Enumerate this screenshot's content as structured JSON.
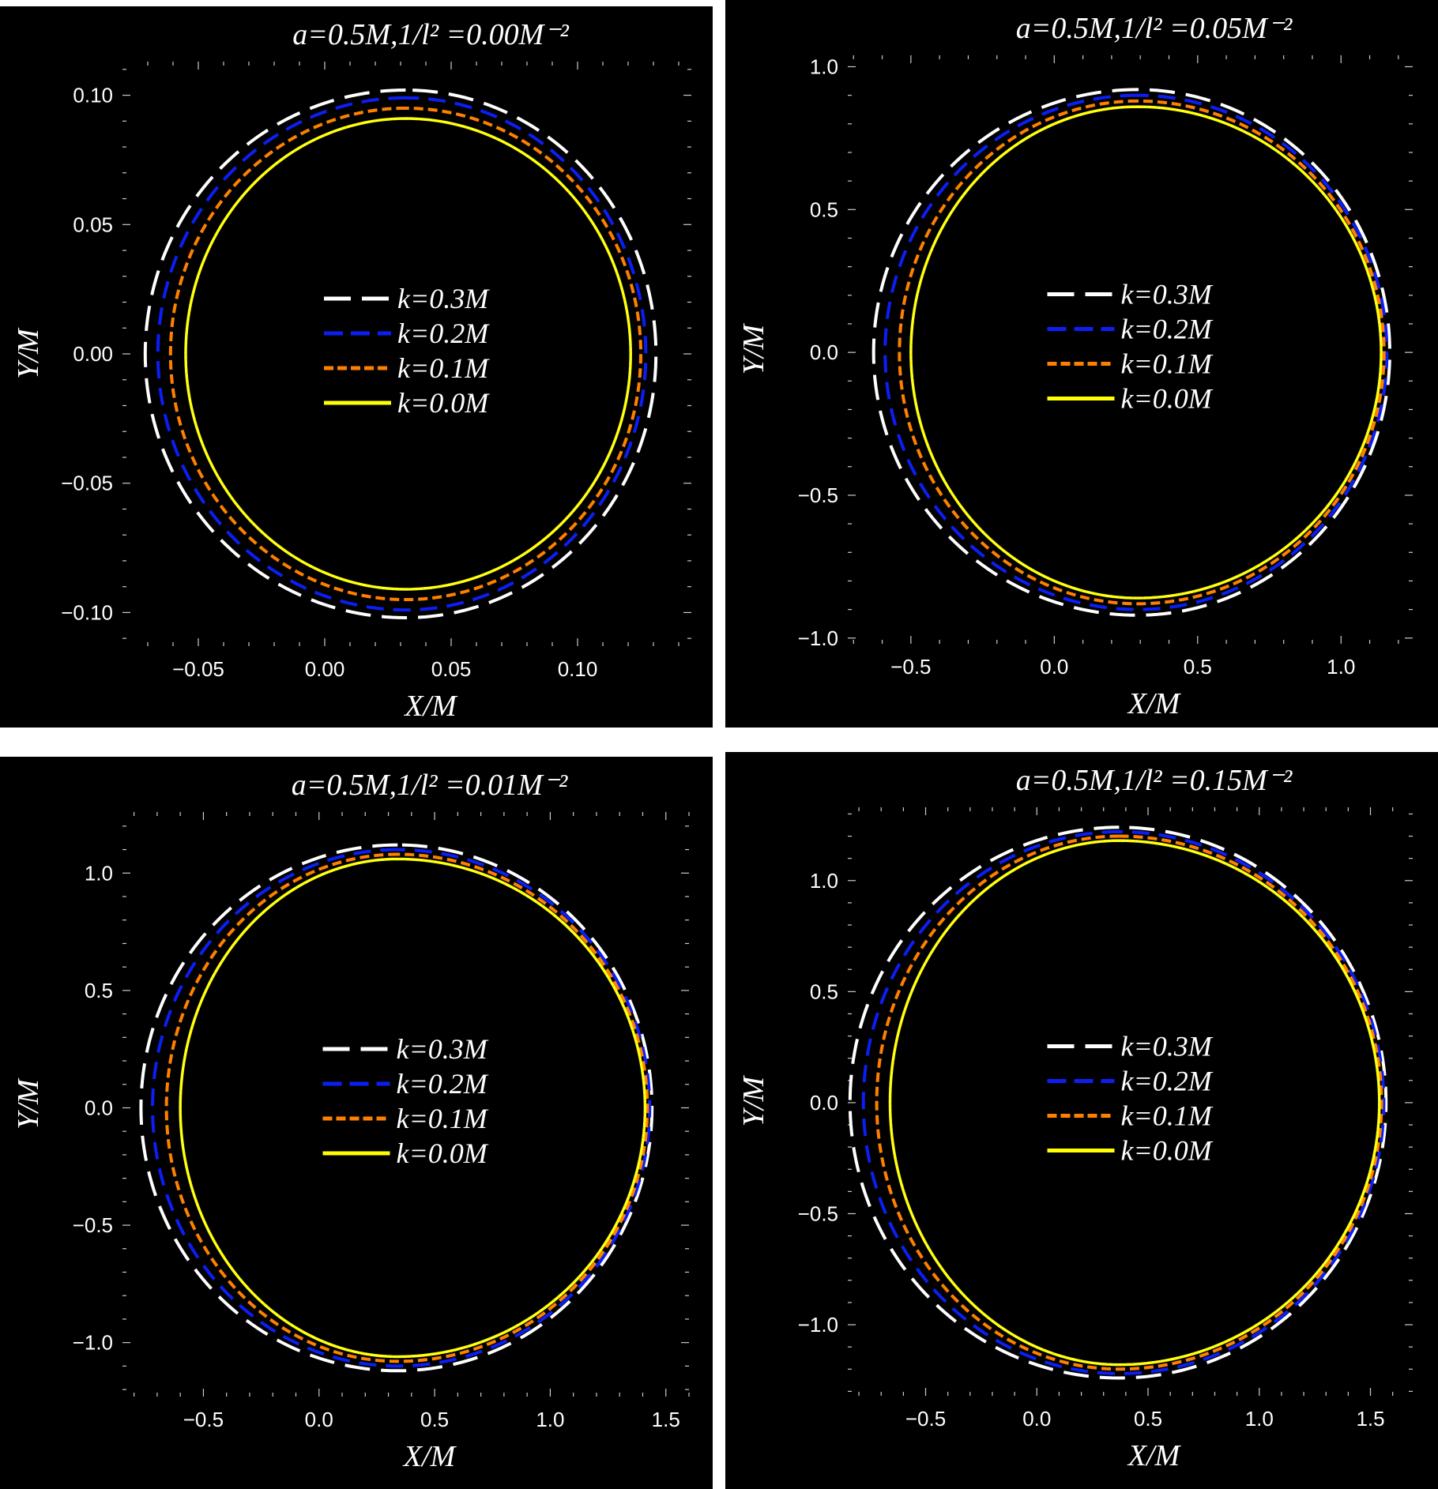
{
  "chart_data": [
    {
      "type": "line",
      "title": "a=0.5M,1/l² =0.00M⁻²",
      "xlabel": "X/M",
      "ylabel": "Y/M",
      "xlim": [
        -0.08,
        0.145
      ],
      "ylim": [
        -0.113,
        0.113
      ],
      "xticks": [
        "−0.05",
        "0.00",
        "0.05",
        "0.10"
      ],
      "xtick_values": [
        -0.05,
        0.0,
        0.05,
        0.1
      ],
      "yticks": [
        "0.10",
        "0.05",
        "0.00",
        "−0.05",
        "−0.10"
      ],
      "ytick_values": [
        0.1,
        0.05,
        0.0,
        -0.05,
        -0.1
      ],
      "legend_position": "center",
      "series": [
        {
          "name": "k=0.3M",
          "color": "#ffffff",
          "style": "long-dash",
          "x_left": -0.071,
          "x_right": 0.131,
          "y_max": 0.102,
          "x_top": 0.032
        },
        {
          "name": "k=0.2M",
          "color": "#0b1ff5",
          "style": "dash",
          "x_left": -0.066,
          "x_right": 0.127,
          "y_max": 0.099,
          "x_top": 0.032
        },
        {
          "name": "k=0.1M",
          "color": "#ff8000",
          "style": "short-dash",
          "x_left": -0.061,
          "x_right": 0.125,
          "y_max": 0.095,
          "x_top": 0.032
        },
        {
          "name": "k=0.0M",
          "color": "#ffff00",
          "style": "solid",
          "x_left": -0.055,
          "x_right": 0.121,
          "y_max": 0.091,
          "x_top": 0.032
        }
      ]
    },
    {
      "type": "line",
      "title": "a=0.5M,1/l² =0.05M⁻²",
      "xlabel": "X/M",
      "ylabel": "Y/M",
      "xlim": [
        -0.72,
        1.25
      ],
      "ylim": [
        -1.02,
        1.04
      ],
      "xticks": [
        "−0.5",
        "0.0",
        "0.5",
        "1.0"
      ],
      "xtick_values": [
        -0.5,
        0.0,
        0.5,
        1.0
      ],
      "yticks": [
        "1.0",
        "0.5",
        "0.0",
        "−0.5",
        "−1.0"
      ],
      "ytick_values": [
        1.0,
        0.5,
        0.0,
        -0.5,
        -1.0
      ],
      "legend_position": "center",
      "series": [
        {
          "name": "k=0.3M",
          "color": "#ffffff",
          "style": "long-dash",
          "x_left": -0.63,
          "x_right": 1.17,
          "y_max": 0.92,
          "x_top": 0.29
        },
        {
          "name": "k=0.2M",
          "color": "#0b1ff5",
          "style": "dash",
          "x_left": -0.59,
          "x_right": 1.16,
          "y_max": 0.9,
          "x_top": 0.29
        },
        {
          "name": "k=0.1M",
          "color": "#ff8000",
          "style": "short-dash",
          "x_left": -0.54,
          "x_right": 1.15,
          "y_max": 0.88,
          "x_top": 0.29
        },
        {
          "name": "k=0.0M",
          "color": "#ffff00",
          "style": "solid",
          "x_left": -0.5,
          "x_right": 1.14,
          "y_max": 0.86,
          "x_top": 0.29
        }
      ]
    },
    {
      "type": "line",
      "title": "a=0.5M,1/l² =0.01M⁻²",
      "xlabel": "X/M",
      "ylabel": "Y/M",
      "xlim": [
        -0.85,
        1.6
      ],
      "ylim": [
        -1.23,
        1.26
      ],
      "xticks": [
        "−0.5",
        "0.0",
        "0.5",
        "1.0",
        "1.5"
      ],
      "xtick_values": [
        -0.5,
        0.0,
        0.5,
        1.0,
        1.5
      ],
      "yticks": [
        "1.0",
        "0.5",
        "0.0",
        "−0.5",
        "−1.0"
      ],
      "ytick_values": [
        1.0,
        0.5,
        0.0,
        -0.5,
        -1.0
      ],
      "legend_position": "center",
      "series": [
        {
          "name": "k=0.3M",
          "color": "#ffffff",
          "style": "long-dash",
          "x_left": -0.77,
          "x_right": 1.44,
          "y_max": 1.12,
          "x_top": 0.34
        },
        {
          "name": "k=0.2M",
          "color": "#0b1ff5",
          "style": "dash",
          "x_left": -0.72,
          "x_right": 1.43,
          "y_max": 1.1,
          "x_top": 0.34
        },
        {
          "name": "k=0.1M",
          "color": "#ff8000",
          "style": "short-dash",
          "x_left": -0.66,
          "x_right": 1.42,
          "y_max": 1.08,
          "x_top": 0.34
        },
        {
          "name": "k=0.0M",
          "color": "#ffff00",
          "style": "solid",
          "x_left": -0.6,
          "x_right": 1.41,
          "y_max": 1.06,
          "x_top": 0.34
        }
      ]
    },
    {
      "type": "line",
      "title": "a=0.5M,1/l² =0.15M⁻²",
      "xlabel": "X/M",
      "ylabel": "Y/M",
      "xlim": [
        -0.85,
        1.69
      ],
      "ylim": [
        -1.32,
        1.33
      ],
      "xticks": [
        "−0.5",
        "0.0",
        "0.5",
        "1.0",
        "1.5"
      ],
      "xtick_values": [
        -0.5,
        0.0,
        0.5,
        1.0,
        1.5
      ],
      "yticks": [
        "1.0",
        "0.5",
        "0.0",
        "−0.5",
        "−1.0"
      ],
      "ytick_values": [
        1.0,
        0.5,
        0.0,
        -0.5,
        -1.0
      ],
      "legend_position": "center",
      "series": [
        {
          "name": "k=0.3M",
          "color": "#ffffff",
          "style": "long-dash",
          "x_left": -0.84,
          "x_right": 1.57,
          "y_max": 1.24,
          "x_top": 0.37
        },
        {
          "name": "k=0.2M",
          "color": "#0b1ff5",
          "style": "dash",
          "x_left": -0.78,
          "x_right": 1.56,
          "y_max": 1.22,
          "x_top": 0.37
        },
        {
          "name": "k=0.1M",
          "color": "#ff8000",
          "style": "short-dash",
          "x_left": -0.72,
          "x_right": 1.55,
          "y_max": 1.2,
          "x_top": 0.37
        },
        {
          "name": "k=0.0M",
          "color": "#ffff00",
          "style": "solid",
          "x_left": -0.66,
          "x_right": 1.54,
          "y_max": 1.18,
          "x_top": 0.37
        }
      ]
    }
  ]
}
